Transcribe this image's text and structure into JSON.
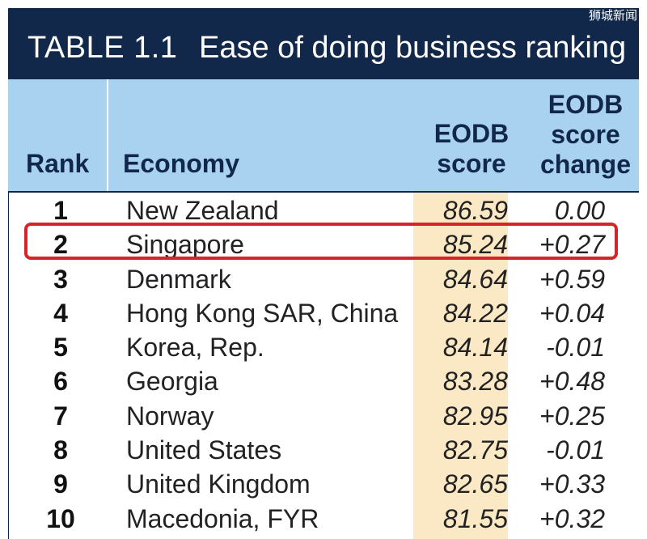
{
  "watermark": "狮城新闻",
  "title": {
    "number": "TABLE 1.1",
    "text": "Ease of doing business ranking"
  },
  "headers": {
    "rank": "Rank",
    "economy": "Economy",
    "score_l1": "EODB",
    "score_l2": "score",
    "change_l1": "EODB",
    "change_l2": "score",
    "change_l3": "change"
  },
  "rows": [
    {
      "rank": "1",
      "economy": "New Zealand",
      "score": "86.59",
      "change": "0.00"
    },
    {
      "rank": "2",
      "economy": "Singapore",
      "score": "85.24",
      "change": "+0.27"
    },
    {
      "rank": "3",
      "economy": "Denmark",
      "score": "84.64",
      "change": "+0.59"
    },
    {
      "rank": "4",
      "economy": "Hong Kong SAR, China",
      "score": "84.22",
      "change": "+0.04"
    },
    {
      "rank": "5",
      "economy": "Korea, Rep.",
      "score": "84.14",
      "change": "-0.01"
    },
    {
      "rank": "6",
      "economy": "Georgia",
      "score": "83.28",
      "change": "+0.48"
    },
    {
      "rank": "7",
      "economy": "Norway",
      "score": "82.95",
      "change": "+0.25"
    },
    {
      "rank": "8",
      "economy": "United States",
      "score": "82.75",
      "change": "-0.01"
    },
    {
      "rank": "9",
      "economy": "United Kingdom",
      "score": "82.65",
      "change": "+0.33"
    },
    {
      "rank": "10",
      "economy": "Macedonia, FYR",
      "score": "81.55",
      "change": "+0.32"
    }
  ],
  "colors": {
    "title_bg": "#12284a",
    "header_bg": "#a9d2f0",
    "score_col_bg": "#fbe9c5",
    "highlight": "#d7242b"
  }
}
